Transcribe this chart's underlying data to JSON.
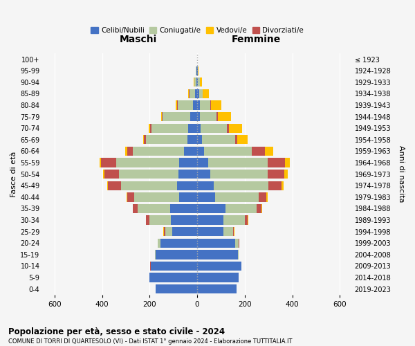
{
  "age_groups": [
    "0-4",
    "5-9",
    "10-14",
    "15-19",
    "20-24",
    "25-29",
    "30-34",
    "35-39",
    "40-44",
    "45-49",
    "50-54",
    "55-59",
    "60-64",
    "65-69",
    "70-74",
    "75-79",
    "80-84",
    "85-89",
    "90-94",
    "95-99",
    "100+"
  ],
  "birth_years": [
    "2019-2023",
    "2014-2018",
    "2009-2013",
    "2004-2008",
    "1999-2003",
    "1994-1998",
    "1989-1993",
    "1984-1988",
    "1979-1983",
    "1974-1978",
    "1969-1973",
    "1964-1968",
    "1959-1963",
    "1954-1958",
    "1949-1953",
    "1944-1948",
    "1939-1943",
    "1934-1938",
    "1929-1933",
    "1924-1928",
    "≤ 1923"
  ],
  "male": {
    "celibi": [
      175,
      200,
      195,
      175,
      155,
      105,
      110,
      115,
      75,
      85,
      80,
      75,
      55,
      40,
      38,
      30,
      18,
      8,
      4,
      2,
      0
    ],
    "coniugati": [
      0,
      0,
      1,
      2,
      10,
      30,
      90,
      135,
      190,
      235,
      250,
      265,
      215,
      175,
      155,
      115,
      65,
      25,
      8,
      3,
      0
    ],
    "vedovi": [
      0,
      0,
      0,
      0,
      0,
      2,
      2,
      2,
      2,
      3,
      5,
      5,
      8,
      5,
      5,
      5,
      5,
      3,
      2,
      0,
      0
    ],
    "divorziati": [
      0,
      0,
      2,
      2,
      2,
      5,
      15,
      20,
      30,
      55,
      60,
      65,
      25,
      8,
      5,
      3,
      3,
      2,
      0,
      0,
      0
    ]
  },
  "female": {
    "nubili": [
      165,
      175,
      185,
      170,
      160,
      110,
      110,
      120,
      75,
      70,
      55,
      45,
      30,
      20,
      15,
      12,
      10,
      8,
      4,
      2,
      0
    ],
    "coniugate": [
      0,
      0,
      1,
      3,
      15,
      40,
      90,
      130,
      185,
      230,
      240,
      250,
      200,
      140,
      110,
      70,
      45,
      15,
      6,
      2,
      0
    ],
    "vedove": [
      0,
      0,
      0,
      0,
      0,
      2,
      2,
      3,
      5,
      8,
      15,
      20,
      35,
      45,
      55,
      55,
      45,
      25,
      10,
      2,
      0
    ],
    "divorziate": [
      0,
      0,
      0,
      0,
      2,
      5,
      12,
      20,
      30,
      55,
      70,
      75,
      55,
      8,
      8,
      5,
      2,
      0,
      0,
      0,
      0
    ]
  },
  "colors": {
    "celibi": "#4472c4",
    "coniugati": "#b5c9a0",
    "vedovi": "#ffc000",
    "divorziati": "#c0504d"
  },
  "title1": "Popolazione per età, sesso e stato civile - 2024",
  "title2": "COMUNE DI TORRI DI QUARTESOLO (VI) - Dati ISTAT 1° gennaio 2024 - Elaborazione TUTTITALIA.IT",
  "xlabel_left": "Maschi",
  "xlabel_right": "Femmine",
  "ylabel_left": "Fasce di età",
  "ylabel_right": "Anni di nascita",
  "xlim": 650,
  "xticks": [
    600,
    400,
    200,
    0,
    200,
    400,
    600
  ],
  "legend_labels": [
    "Celibi/Nubili",
    "Coniugati/e",
    "Vedovi/e",
    "Divorziati/e"
  ],
  "bg_color": "#f5f5f5",
  "plot_bg": "#f5f5f5",
  "grid_color": "#ffffff",
  "center_line_color": "#aaaaaa"
}
